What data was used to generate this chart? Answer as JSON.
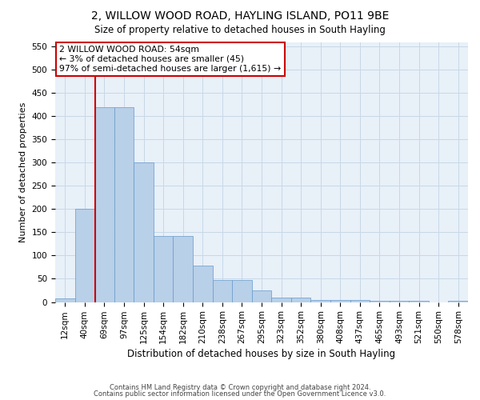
{
  "title": "2, WILLOW WOOD ROAD, HAYLING ISLAND, PO11 9BE",
  "subtitle": "Size of property relative to detached houses in South Hayling",
  "xlabel": "Distribution of detached houses by size in South Hayling",
  "ylabel": "Number of detached properties",
  "bar_values": [
    8,
    200,
    420,
    420,
    300,
    143,
    143,
    78,
    47,
    47,
    25,
    10,
    10,
    5,
    5,
    5,
    2,
    2,
    2,
    0,
    2
  ],
  "x_labels": [
    "12sqm",
    "40sqm",
    "69sqm",
    "97sqm",
    "125sqm",
    "154sqm",
    "182sqm",
    "210sqm",
    "238sqm",
    "267sqm",
    "295sqm",
    "323sqm",
    "352sqm",
    "380sqm",
    "408sqm",
    "437sqm",
    "465sqm",
    "493sqm",
    "521sqm",
    "550sqm",
    "578sqm"
  ],
  "bar_color": "#b8d0e8",
  "bar_edge_color": "#6699cc",
  "bar_linewidth": 0.5,
  "grid_color": "#c8d8e8",
  "bg_color": "#e8f0f8",
  "vline_x": 1.52,
  "vline_color": "#cc0000",
  "vline_linewidth": 1.5,
  "annotation_text": "2 WILLOW WOOD ROAD: 54sqm\n← 3% of detached houses are smaller (45)\n97% of semi-detached houses are larger (1,615) →",
  "annotation_box_color": "#cc0000",
  "annotation_facecolor": "#ffffff",
  "annotation_fontsize": 7.8,
  "ylim": [
    0,
    560
  ],
  "yticks": [
    0,
    50,
    100,
    150,
    200,
    250,
    300,
    350,
    400,
    450,
    500,
    550
  ],
  "ylabel_fontsize": 8,
  "xlabel_fontsize": 8.5,
  "title_fontsize": 10,
  "subtitle_fontsize": 8.5,
  "tick_fontsize": 7.5,
  "footer_line1": "Contains HM Land Registry data © Crown copyright and database right 2024.",
  "footer_line2": "Contains public sector information licensed under the Open Government Licence v3.0.",
  "footer_fontsize": 6.0
}
